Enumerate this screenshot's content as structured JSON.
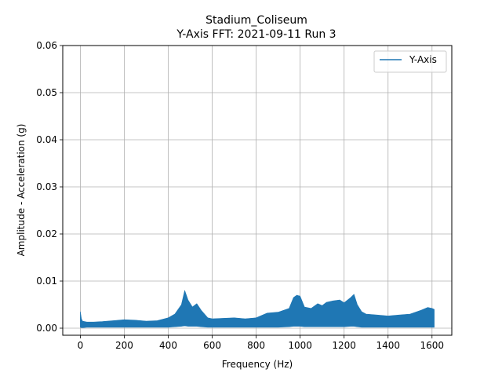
{
  "chart_data": {
    "type": "line",
    "title": "Stadium_Coliseum",
    "subtitle": "Y-Axis FFT: 2021-09-11 Run 3",
    "xlabel": "Frequency (Hz)",
    "ylabel": "Amplitude - Acceleration (g)",
    "xlim": [
      -80,
      1690
    ],
    "ylim": [
      -0.0015,
      0.06
    ],
    "xticks": [
      0,
      200,
      400,
      600,
      800,
      1000,
      1200,
      1400,
      1600
    ],
    "xtick_labels": [
      "0",
      "200",
      "400",
      "600",
      "800",
      "1000",
      "1200",
      "1400",
      "1600"
    ],
    "yticks": [
      0.0,
      0.01,
      0.02,
      0.03,
      0.04,
      0.05,
      0.06
    ],
    "ytick_labels": [
      "0.00",
      "0.01",
      "0.02",
      "0.03",
      "0.04",
      "0.05",
      "0.06"
    ],
    "grid": true,
    "legend_position": "top-right",
    "series": [
      {
        "name": "Y-Axis",
        "color": "#1f77b4",
        "x": [
          0,
          5,
          10,
          30,
          60,
          100,
          150,
          200,
          250,
          300,
          350,
          400,
          430,
          460,
          475,
          490,
          510,
          530,
          550,
          580,
          600,
          650,
          700,
          750,
          800,
          850,
          900,
          950,
          970,
          985,
          1000,
          1020,
          1050,
          1080,
          1100,
          1120,
          1150,
          1180,
          1200,
          1230,
          1245,
          1260,
          1280,
          1300,
          1350,
          1400,
          1450,
          1500,
          1550,
          1580,
          1600,
          1610
        ],
        "y_max": [
          0.0035,
          0.002,
          0.0015,
          0.0013,
          0.0013,
          0.0014,
          0.0016,
          0.0018,
          0.0017,
          0.0015,
          0.0016,
          0.0022,
          0.003,
          0.005,
          0.008,
          0.006,
          0.0045,
          0.0052,
          0.0038,
          0.0022,
          0.002,
          0.0021,
          0.0022,
          0.002,
          0.0022,
          0.0032,
          0.0034,
          0.0042,
          0.0065,
          0.007,
          0.0068,
          0.0045,
          0.0042,
          0.0052,
          0.0048,
          0.0055,
          0.0058,
          0.006,
          0.0054,
          0.0065,
          0.0072,
          0.005,
          0.0035,
          0.003,
          0.0028,
          0.0026,
          0.0028,
          0.003,
          0.0038,
          0.0044,
          0.0042,
          0.004
        ],
        "y_min": [
          0.0002,
          0.0001,
          0.0001,
          0.0002,
          0.0002,
          0.0002,
          0.0002,
          0.0002,
          0.0002,
          0.0002,
          0.0002,
          0.0002,
          0.0003,
          0.0004,
          0.0005,
          0.0004,
          0.0004,
          0.0004,
          0.0003,
          0.0002,
          0.0002,
          0.0002,
          0.0002,
          0.0002,
          0.0002,
          0.0002,
          0.0002,
          0.0003,
          0.0004,
          0.0004,
          0.0004,
          0.0003,
          0.0003,
          0.0003,
          0.0003,
          0.0003,
          0.0003,
          0.0003,
          0.0003,
          0.0004,
          0.0004,
          0.0003,
          0.0002,
          0.0002,
          0.0002,
          0.0002,
          0.0002,
          0.0002,
          0.0002,
          0.0002,
          0.0002,
          0.0002
        ]
      }
    ]
  }
}
